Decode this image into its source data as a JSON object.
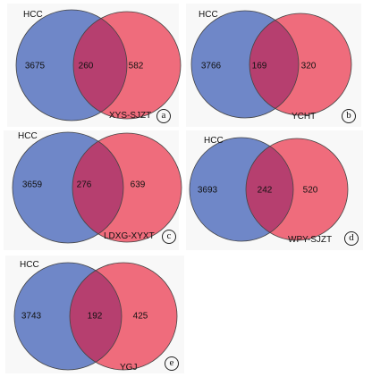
{
  "colors": {
    "left_circle": "#6f87c8",
    "right_circle": "#ef6c7c",
    "overlap": "#b63f6f",
    "outline": "#444444"
  },
  "panels": [
    {
      "id": "a",
      "left_label": "HCC",
      "right_label": "XYS-SJZT",
      "left_only": "3675",
      "both": "260",
      "right_only": "582",
      "tag": "a"
    },
    {
      "id": "b",
      "left_label": "HCC",
      "right_label": "YCHT",
      "left_only": "3766",
      "both": "169",
      "right_only": "320",
      "tag": "b"
    },
    {
      "id": "c",
      "left_label": "HCC",
      "right_label": "LDXG-XYXT",
      "left_only": "3659",
      "both": "276",
      "right_only": "639",
      "tag": "c"
    },
    {
      "id": "d",
      "left_label": "HCC",
      "right_label": "WPY-SJZT",
      "left_only": "3693",
      "both": "242",
      "right_only": "520",
      "tag": "d"
    },
    {
      "id": "e",
      "left_label": "HCC",
      "right_label": "YGJ",
      "left_only": "3743",
      "both": "192",
      "right_only": "425",
      "tag": "e"
    }
  ]
}
